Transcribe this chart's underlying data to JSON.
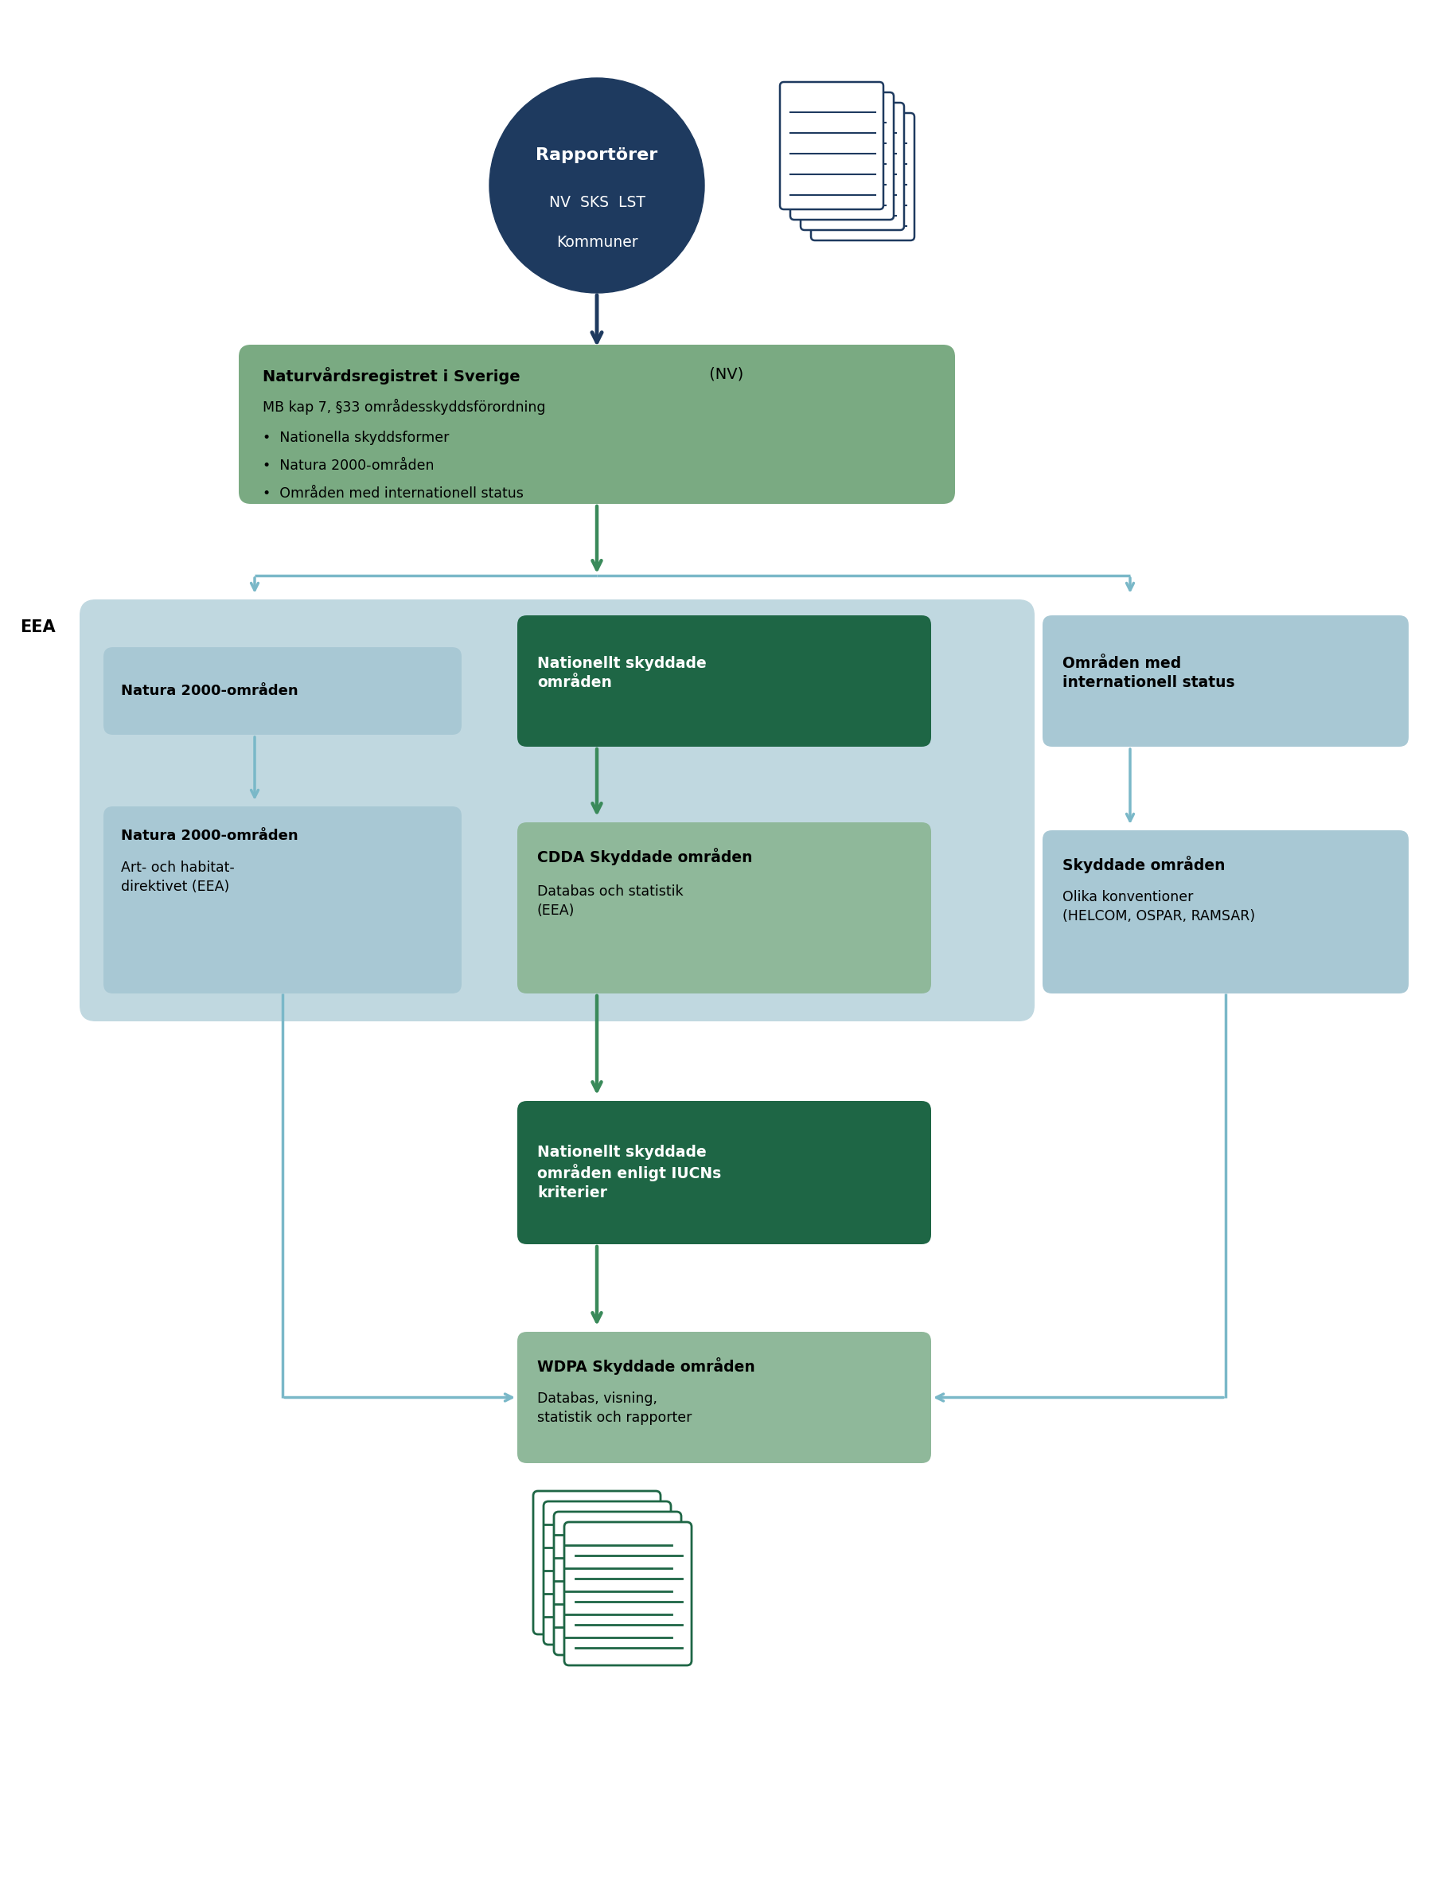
{
  "bg_color": "#ffffff",
  "dark_blue": "#1e3a5f",
  "medium_green": "#7aaa82",
  "dark_green": "#1e6645",
  "light_blue_bg": "#c0d8e0",
  "light_blue_box": "#a8c8d4",
  "light_green_box": "#8fb89a",
  "arrow_blue": "#1e3a5f",
  "arrow_green": "#3a8a5a",
  "arrow_light_blue": "#7ab8c8",
  "rapporter_title": "Rapportörer",
  "rapporter_sub": "NV  SKS  LST\nKommuner",
  "box1_title": "Naturvårdsregistret i Sverige",
  "box1_title_suffix": " (NV)",
  "box1_line1": "MB kap 7, §33 områdesskyddsförordning",
  "box1_bullets": [
    "Nationella skyddsformer",
    "Natura 2000-områden",
    "Områden med internationell status"
  ],
  "eea_label": "EEA",
  "box_nat2000_title": "Natura 2000-områden",
  "box_nat2000_sub_title": "Natura 2000-områden",
  "box_nat2000_sub_text": "Art- och habitat-\ndirektivet (EEA)",
  "box_nationellt_title": "Nationellt skyddade\nområden",
  "box_cdda_title": "CDDA Skyddade områden",
  "box_cdda_text": "Databas och statistik\n(EEA)",
  "box_iucn_title": "Nationellt skyddade\nområden enligt IUCNs\nkriterier",
  "box_intl_title": "Områden med\ninternationell status",
  "box_skyddade_title": "Skyddade områden",
  "box_skyddade_text": "Olika konventioner\n(HELCOM, OSPAR, RAMSAR)",
  "box_wdpa_title": "WDPA Skyddade områden",
  "box_wdpa_text": "Databas, visning,\nstatistik och rapporter"
}
